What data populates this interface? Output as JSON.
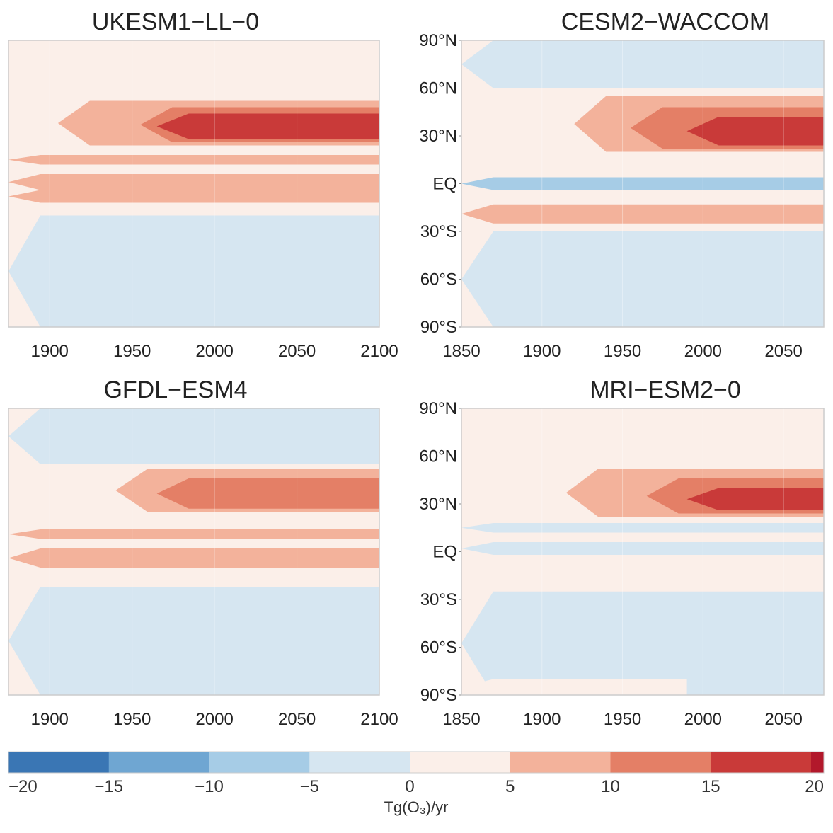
{
  "chart_data": {
    "type": "heatmap",
    "description_type": "filled contour (time vs latitude)",
    "panels": [
      {
        "title": "UKESM1−LL−0",
        "xticks": [
          "1900",
          "1950",
          "2000",
          "2050",
          "2100"
        ],
        "xlim": [
          1875,
          2100
        ],
        "yticks": [],
        "ylim": [
          -90,
          90
        ],
        "field": [
          {
            "lat": [
              72,
              90
            ],
            "t0": 1875,
            "t1": 2100,
            "value": 2
          },
          {
            "lat": [
              55,
              72
            ],
            "t0": 1875,
            "t1": 2100,
            "value": 2
          },
          {
            "lat": [
              24,
              52
            ],
            "t0": 1905,
            "t1": 2100,
            "value": 7
          },
          {
            "lat": [
              26,
              48
            ],
            "t0": 1955,
            "t1": 2100,
            "value": 12
          },
          {
            "lat": [
              28,
              44
            ],
            "t0": 1965,
            "t1": 2100,
            "value": 16
          },
          {
            "lat": [
              12,
              18
            ],
            "t0": 1875,
            "t1": 2100,
            "value": 6
          },
          {
            "lat": [
              -4,
              6
            ],
            "t0": 1875,
            "t1": 2100,
            "value": 7
          },
          {
            "lat": [
              -12,
              -4
            ],
            "t0": 1875,
            "t1": 2100,
            "value": 6
          },
          {
            "lat": [
              -20,
              -12
            ],
            "t0": 1960,
            "t1": 2100,
            "value": 3
          },
          {
            "lat": [
              -90,
              -20
            ],
            "t0": 1875,
            "t1": 2100,
            "value": -3
          }
        ]
      },
      {
        "title": "CESM2−WACCOM",
        "xticks": [
          "1850",
          "1900",
          "1950",
          "2000",
          "2050"
        ],
        "xlim": [
          1850,
          2075
        ],
        "yticks": [
          "90°N",
          "60°N",
          "30°N",
          "EQ",
          "30°S",
          "60°S",
          "90°S"
        ],
        "ylim": [
          -90,
          90
        ],
        "field": [
          {
            "lat": [
              60,
              90
            ],
            "t0": 1850,
            "t1": 2075,
            "value": -3
          },
          {
            "lat": [
              20,
              55
            ],
            "t0": 1920,
            "t1": 2075,
            "value": 7
          },
          {
            "lat": [
              22,
              48
            ],
            "t0": 1955,
            "t1": 2075,
            "value": 12
          },
          {
            "lat": [
              24,
              42
            ],
            "t0": 1990,
            "t1": 2075,
            "value": 16
          },
          {
            "lat": [
              -4,
              4
            ],
            "t0": 1850,
            "t1": 2075,
            "value": -8
          },
          {
            "lat": [
              -25,
              -13
            ],
            "t0": 1850,
            "t1": 2075,
            "value": 6
          },
          {
            "lat": [
              -90,
              -30
            ],
            "t0": 1850,
            "t1": 2075,
            "value": -3
          }
        ]
      },
      {
        "title": "GFDL−ESM4",
        "xticks": [
          "1900",
          "1950",
          "2000",
          "2050",
          "2100"
        ],
        "xlim": [
          1875,
          2100
        ],
        "yticks": [],
        "ylim": [
          -90,
          90
        ],
        "field": [
          {
            "lat": [
              55,
              90
            ],
            "t0": 1875,
            "t1": 2100,
            "value": -3
          },
          {
            "lat": [
              25,
              52
            ],
            "t0": 1940,
            "t1": 2100,
            "value": 7
          },
          {
            "lat": [
              27,
              46
            ],
            "t0": 1965,
            "t1": 2100,
            "value": 11
          },
          {
            "lat": [
              8,
              14
            ],
            "t0": 1875,
            "t1": 2100,
            "value": 7
          },
          {
            "lat": [
              -10,
              2
            ],
            "t0": 1875,
            "t1": 2100,
            "value": 6
          },
          {
            "lat": [
              -20,
              -10
            ],
            "t0": 1940,
            "t1": 2100,
            "value": 3
          },
          {
            "lat": [
              -90,
              -22
            ],
            "t0": 1875,
            "t1": 2100,
            "value": -3
          }
        ]
      },
      {
        "title": "MRI−ESM2−0",
        "xticks": [
          "1850",
          "1900",
          "1950",
          "2000",
          "2050"
        ],
        "xlim": [
          1850,
          2075
        ],
        "yticks": [
          "90°N",
          "60°N",
          "30°N",
          "EQ",
          "30°S",
          "60°S",
          "90°S"
        ],
        "ylim": [
          -90,
          90
        ],
        "field": [
          {
            "lat": [
              22,
              52
            ],
            "t0": 1915,
            "t1": 2075,
            "value": 7
          },
          {
            "lat": [
              24,
              46
            ],
            "t0": 1965,
            "t1": 2075,
            "value": 13
          },
          {
            "lat": [
              26,
              40
            ],
            "t0": 1990,
            "t1": 2075,
            "value": 17
          },
          {
            "lat": [
              12,
              18
            ],
            "t0": 1850,
            "t1": 2075,
            "value": -3
          },
          {
            "lat": [
              -2,
              6
            ],
            "t0": 1850,
            "t1": 2075,
            "value": -3
          },
          {
            "lat": [
              -90,
              -25
            ],
            "t0": 1850,
            "t1": 2075,
            "value": -3
          },
          {
            "lat": [
              -90,
              -80
            ],
            "t0": 1850,
            "t1": 1990,
            "value": 2
          }
        ]
      }
    ],
    "colorbar": {
      "ticks": [
        "−20",
        "−15",
        "−10",
        "−5",
        "0",
        "5",
        "10",
        "15",
        "20"
      ],
      "levels": [
        -20,
        -15,
        -10,
        -5,
        0,
        5,
        10,
        15,
        20
      ],
      "colors": [
        "#3a76b4",
        "#6fa6d2",
        "#a6cce6",
        "#d6e6f1",
        "#fbefe9",
        "#f3b29b",
        "#e47f66",
        "#c93a39",
        "#b2182b"
      ],
      "label": "Tg(O₃)/yr"
    },
    "grid": true
  }
}
